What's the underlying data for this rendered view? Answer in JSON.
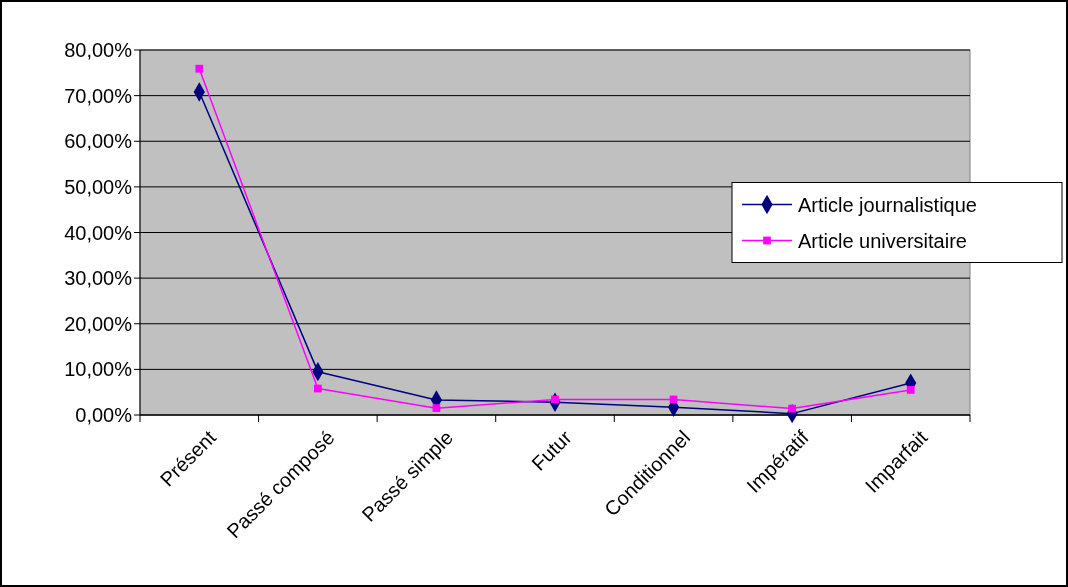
{
  "chart_data": {
    "type": "line",
    "categories": [
      "Présent",
      "Passé composé",
      "Passé simple",
      "Futur",
      "Conditionnel",
      "Impératif",
      "Imparfait"
    ],
    "series": [
      {
        "name": "Article journalistique",
        "color": "#000080",
        "marker": "diamond",
        "values": [
          70.8,
          9.5,
          3.3,
          2.8,
          1.7,
          0.3,
          7.0
        ]
      },
      {
        "name": "Article universitaire",
        "color": "#ff00ff",
        "marker": "square",
        "values": [
          75.9,
          5.8,
          1.5,
          3.4,
          3.4,
          1.4,
          5.5
        ]
      }
    ],
    "ylim": [
      0,
      80
    ],
    "yticks": [
      {
        "value": 0,
        "label": "0,00%"
      },
      {
        "value": 10,
        "label": "10,00%"
      },
      {
        "value": 20,
        "label": "20,00%"
      },
      {
        "value": 30,
        "label": "30,00%"
      },
      {
        "value": 40,
        "label": "40,00%"
      },
      {
        "value": 50,
        "label": "50,00%"
      },
      {
        "value": 60,
        "label": "60,00%"
      },
      {
        "value": 70,
        "label": "70,00%"
      },
      {
        "value": 80,
        "label": "80,00%"
      }
    ],
    "grid": "y",
    "legend": "right",
    "line_style": "solid"
  }
}
